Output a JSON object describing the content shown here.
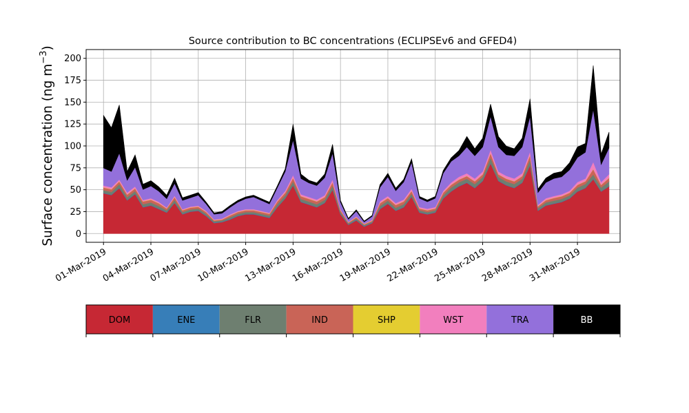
{
  "chart_data": {
    "type": "area",
    "stacked": true,
    "title": "Source contribution to BC concentrations (ECLIPSEv6 and GFED4)",
    "ylabel_main": "Surface concentration (ng m",
    "ylabel_exp": "−3",
    "ylabel_close": ")",
    "xlabel": "",
    "ylim": [
      -10,
      210
    ],
    "yticks": [
      0,
      25,
      50,
      75,
      100,
      125,
      150,
      175,
      200
    ],
    "xlim_days": [
      -1.1,
      32.7
    ],
    "xticks": [
      "01-Mar-2019",
      "04-Mar-2019",
      "07-Mar-2019",
      "10-Mar-2019",
      "13-Mar-2019",
      "16-Mar-2019",
      "19-Mar-2019",
      "22-Mar-2019",
      "25-Mar-2019",
      "28-Mar-2019",
      "31-Mar-2019"
    ],
    "grid": true,
    "legend_position": "bottom",
    "x": [
      "01-Mar-2019 00:00",
      "01-Mar-2019 12:00",
      "02-Mar-2019 00:00",
      "02-Mar-2019 12:00",
      "03-Mar-2019 00:00",
      "03-Mar-2019 12:00",
      "04-Mar-2019 00:00",
      "04-Mar-2019 12:00",
      "05-Mar-2019 00:00",
      "05-Mar-2019 12:00",
      "06-Mar-2019 00:00",
      "06-Mar-2019 12:00",
      "07-Mar-2019 00:00",
      "07-Mar-2019 12:00",
      "08-Mar-2019 00:00",
      "08-Mar-2019 12:00",
      "09-Mar-2019 00:00",
      "09-Mar-2019 12:00",
      "10-Mar-2019 00:00",
      "10-Mar-2019 12:00",
      "11-Mar-2019 00:00",
      "11-Mar-2019 12:00",
      "12-Mar-2019 00:00",
      "12-Mar-2019 12:00",
      "13-Mar-2019 00:00",
      "13-Mar-2019 12:00",
      "14-Mar-2019 00:00",
      "14-Mar-2019 12:00",
      "15-Mar-2019 00:00",
      "15-Mar-2019 12:00",
      "16-Mar-2019 00:00",
      "16-Mar-2019 12:00",
      "17-Mar-2019 00:00",
      "17-Mar-2019 12:00",
      "18-Mar-2019 00:00",
      "18-Mar-2019 12:00",
      "19-Mar-2019 00:00",
      "19-Mar-2019 12:00",
      "20-Mar-2019 00:00",
      "20-Mar-2019 12:00",
      "21-Mar-2019 00:00",
      "21-Mar-2019 12:00",
      "22-Mar-2019 00:00",
      "22-Mar-2019 12:00",
      "23-Mar-2019 00:00",
      "23-Mar-2019 12:00",
      "24-Mar-2019 00:00",
      "24-Mar-2019 12:00",
      "25-Mar-2019 00:00",
      "25-Mar-2019 12:00",
      "26-Mar-2019 00:00",
      "26-Mar-2019 12:00",
      "27-Mar-2019 00:00",
      "27-Mar-2019 12:00",
      "28-Mar-2019 00:00",
      "28-Mar-2019 12:00",
      "29-Mar-2019 00:00",
      "29-Mar-2019 12:00",
      "30-Mar-2019 00:00",
      "30-Mar-2019 12:00",
      "31-Mar-2019 00:00",
      "31-Mar-2019 12:00",
      "01-Apr-2019 00:00",
      "01-Apr-2019 12:00",
      "02-Apr-2019 00:00"
    ],
    "series": [
      {
        "name": "DOM",
        "color": "#c62834",
        "values": [
          46,
          44,
          52,
          38,
          45,
          30,
          32,
          28,
          24,
          35,
          22,
          25,
          26,
          20,
          12,
          13,
          16,
          20,
          22,
          22,
          20,
          18,
          30,
          40,
          55,
          36,
          33,
          30,
          35,
          50,
          22,
          10,
          15,
          8,
          12,
          28,
          34,
          26,
          30,
          42,
          24,
          22,
          24,
          40,
          48,
          54,
          58,
          52,
          60,
          80,
          60,
          55,
          52,
          58,
          78,
          26,
          32,
          34,
          36,
          40,
          48,
          52,
          62,
          48,
          54
        ]
      },
      {
        "name": "ENE",
        "color": "#377eb8",
        "values": [
          0.5,
          0.5,
          0.5,
          0.5,
          0.5,
          0.5,
          0.5,
          0.5,
          0.5,
          0.5,
          0.5,
          0.5,
          0.5,
          0.5,
          0.5,
          0.5,
          0.5,
          0.5,
          0.5,
          0.5,
          0.5,
          0.5,
          0.5,
          0.5,
          0.5,
          0.5,
          0.5,
          0.5,
          0.5,
          0.5,
          0.5,
          0.5,
          0.5,
          0.5,
          0.5,
          0.5,
          0.5,
          0.5,
          0.5,
          0.5,
          0.5,
          0.5,
          0.5,
          0.5,
          0.5,
          0.5,
          0.5,
          0.5,
          0.5,
          0.5,
          0.5,
          0.5,
          0.5,
          0.5,
          0.5,
          0.5,
          0.5,
          0.5,
          0.5,
          0.5,
          0.5,
          0.5,
          0.5,
          0.5,
          0.5
        ]
      },
      {
        "name": "FLR",
        "color": "#6e7f70",
        "values": [
          3,
          3,
          4,
          3,
          3,
          3,
          3,
          3,
          2,
          3,
          2,
          2,
          2,
          2,
          1.5,
          1.5,
          2,
          2,
          2,
          2,
          2,
          2,
          3,
          3,
          4,
          3,
          3,
          3,
          3,
          4,
          2,
          1,
          1.5,
          1,
          1,
          3,
          3,
          3,
          3,
          3,
          2,
          2,
          2,
          3,
          4,
          4,
          4,
          4,
          4,
          6,
          4,
          4,
          4,
          4,
          6,
          2.5,
          3,
          3,
          3,
          3,
          4,
          4,
          5,
          4,
          5
        ]
      },
      {
        "name": "IND",
        "color": "#c96457",
        "values": [
          3,
          3,
          3,
          3,
          3,
          3,
          3,
          3,
          2,
          3,
          2,
          2,
          2,
          2,
          1,
          1,
          2,
          2,
          2,
          2,
          2,
          2,
          3,
          3,
          4,
          3,
          3,
          3,
          3,
          4,
          2,
          1,
          1.5,
          1,
          1,
          3,
          3,
          3,
          3,
          3,
          2,
          2,
          2,
          3,
          3,
          3,
          3,
          3,
          3,
          5,
          3,
          3,
          3,
          3,
          5,
          2,
          2.5,
          3,
          3,
          3,
          3,
          3,
          6,
          3,
          4
        ]
      },
      {
        "name": "SHP",
        "color": "#e4cd31",
        "values": [
          0.3,
          0.3,
          0.3,
          0.3,
          0.3,
          0.3,
          0.3,
          0.3,
          0.3,
          0.3,
          0.3,
          0.3,
          0.3,
          0.3,
          0.3,
          0.3,
          0.3,
          0.3,
          0.3,
          0.3,
          0.3,
          0.3,
          0.3,
          0.3,
          0.3,
          0.3,
          0.3,
          0.3,
          0.3,
          0.3,
          0.3,
          0.3,
          0.3,
          0.3,
          0.3,
          0.3,
          0.3,
          0.3,
          0.3,
          0.3,
          0.3,
          0.3,
          0.3,
          0.3,
          0.3,
          0.3,
          0.3,
          0.3,
          0.3,
          0.3,
          0.3,
          0.3,
          0.3,
          0.3,
          0.3,
          0.3,
          0.3,
          0.3,
          0.3,
          0.3,
          0.3,
          0.3,
          0.3,
          0.3,
          0.3
        ]
      },
      {
        "name": "WST",
        "color": "#f27fbe",
        "values": [
          2,
          2,
          2,
          2,
          2,
          1.5,
          1.5,
          1.5,
          1,
          1.5,
          1,
          1,
          1,
          1,
          0.8,
          0.8,
          1,
          1,
          1,
          1,
          1,
          1,
          1.5,
          2,
          3,
          2,
          2,
          2,
          2,
          3,
          1,
          0.5,
          0.8,
          0.5,
          0.8,
          2,
          2,
          2,
          2,
          2.5,
          1.5,
          1.5,
          1.5,
          2,
          2.5,
          3,
          3,
          3,
          3,
          4,
          3,
          3,
          3,
          3,
          4,
          1.5,
          2,
          2,
          2,
          2,
          3,
          3,
          8,
          3,
          4
        ]
      },
      {
        "name": "TRA",
        "color": "#9370db",
        "values": [
          20,
          18,
          30,
          14,
          22,
          12,
          14,
          12,
          10,
          14,
          10,
          10,
          12,
          8,
          6,
          6,
          8,
          10,
          12,
          14,
          12,
          10,
          14,
          22,
          40,
          18,
          16,
          16,
          20,
          30,
          8,
          3,
          6,
          2,
          4,
          16,
          22,
          14,
          20,
          30,
          10,
          8,
          10,
          20,
          24,
          24,
          30,
          26,
          28,
          38,
          28,
          24,
          26,
          30,
          40,
          14,
          18,
          20,
          20,
          24,
          28,
          30,
          60,
          20,
          30
        ]
      },
      {
        "name": "BB",
        "color": "#000000",
        "values": [
          60,
          50,
          55,
          10,
          14,
          6,
          6,
          5,
          4,
          6,
          3,
          3,
          3,
          2,
          1.5,
          2,
          2,
          2,
          2,
          2,
          2,
          2,
          2,
          3,
          18,
          5,
          3,
          3,
          4,
          10,
          2,
          1,
          1.5,
          1,
          1,
          3,
          4,
          3,
          3,
          4,
          2,
          2,
          2,
          3,
          4,
          6,
          12,
          8,
          10,
          14,
          12,
          10,
          8,
          10,
          20,
          4,
          5,
          6,
          6,
          8,
          12,
          10,
          50,
          12,
          18
        ]
      }
    ],
    "legend": [
      {
        "label": "DOM",
        "color": "#c62834",
        "text_color": "#000000"
      },
      {
        "label": "ENE",
        "color": "#377eb8",
        "text_color": "#000000"
      },
      {
        "label": "FLR",
        "color": "#6e7f70",
        "text_color": "#000000"
      },
      {
        "label": "IND",
        "color": "#c96457",
        "text_color": "#000000"
      },
      {
        "label": "SHP",
        "color": "#e4cd31",
        "text_color": "#000000"
      },
      {
        "label": "WST",
        "color": "#f27fbe",
        "text_color": "#000000"
      },
      {
        "label": "TRA",
        "color": "#9370db",
        "text_color": "#000000"
      },
      {
        "label": "BB",
        "color": "#000000",
        "text_color": "#ffffff"
      }
    ]
  }
}
